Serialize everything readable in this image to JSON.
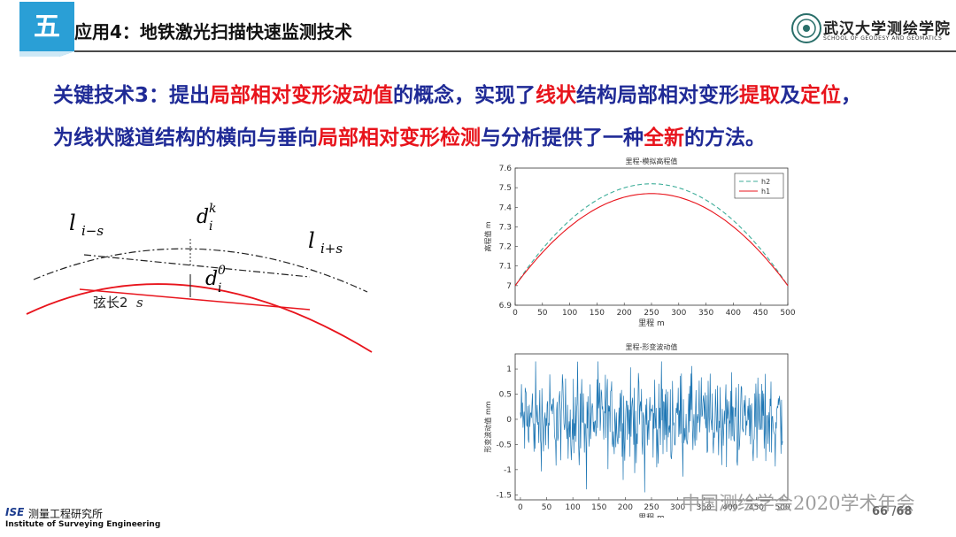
{
  "header": {
    "section_badge": "五",
    "title": "应用4：地铁激光扫描快速监测技术",
    "logo_name": "武汉大学测绘学院",
    "logo_sub": "SCHOOL OF GEODESY AND GEOMATICS"
  },
  "key_text": {
    "line1": [
      {
        "t": "关键技术3：提出",
        "red": false
      },
      {
        "t": "局部相对变形波动值",
        "red": true
      },
      {
        "t": "的概念，实现了",
        "red": false
      },
      {
        "t": "线状",
        "red": true
      },
      {
        "t": "结构局部相对变形",
        "red": false
      },
      {
        "t": "提取",
        "red": true
      },
      {
        "t": "及",
        "red": false
      },
      {
        "t": "定位",
        "red": true
      },
      {
        "t": "，",
        "red": false
      }
    ],
    "line2": [
      {
        "t": "为线状隧道结构的横向与垂向",
        "red": false
      },
      {
        "t": "局部相对变形检测",
        "red": true
      },
      {
        "t": "与分析提供了一种",
        "red": false
      },
      {
        "t": "全新",
        "red": true
      },
      {
        "t": "的方法。",
        "red": false
      }
    ]
  },
  "diagram": {
    "label_left": "l",
    "label_left_sub": "i−s",
    "label_right": "l",
    "label_right_sub": "i+s",
    "label_dk": "d",
    "label_dk_sub": "i",
    "label_dk_sup": "k",
    "label_d0": "d",
    "label_d0_sub": "i",
    "label_d0_sup": "0",
    "chord_label": "弦长2",
    "chord_label_s": "s"
  },
  "chart_data": [
    {
      "type": "line",
      "title": "里程-模拟高程值",
      "xlabel": "里程 m",
      "ylabel": "高程值 m",
      "xlim": [
        0,
        500
      ],
      "ylim": [
        6.9,
        7.6
      ],
      "xticks": [
        0,
        50,
        100,
        150,
        200,
        250,
        300,
        350,
        400,
        450,
        500
      ],
      "yticks": [
        6.9,
        7,
        7.1,
        7.2,
        7.3,
        7.4,
        7.5,
        7.6
      ],
      "legend_position": "top-right",
      "series": [
        {
          "name": "h2",
          "color": "#3fae9a",
          "style": "dashed",
          "vertex": [
            250,
            7.52
          ],
          "ends": [
            7.0,
            7.0
          ]
        },
        {
          "name": "h1",
          "color": "#e8141c",
          "style": "solid",
          "vertex": [
            250,
            7.47
          ],
          "ends": [
            7.0,
            7.0
          ]
        }
      ]
    },
    {
      "type": "line",
      "title": "里程-形变波动值",
      "xlabel": "里程 m",
      "ylabel": "形变波动值 mm",
      "xlim": [
        -10,
        510
      ],
      "ylim": [
        -1.6,
        1.3
      ],
      "xticks": [
        0,
        50,
        100,
        150,
        200,
        250,
        300,
        350,
        400,
        450,
        500
      ],
      "yticks": [
        -1.5,
        -1,
        -0.5,
        0,
        0.5,
        1
      ],
      "series": [
        {
          "name": "",
          "color": "#1f77b4",
          "style": "solid",
          "x_range": [
            0,
            500
          ],
          "amplitude_min": -1.45,
          "amplitude_max": 1.15
        }
      ]
    }
  ],
  "footer": {
    "ise": "ISE",
    "ise_cn": "测量工程研究所",
    "ise_en": "Institute of Surveying Engineering",
    "watermark": "中国测绘学会2020学术年会",
    "page": "66",
    "total": "/68",
    "page_sep": " "
  },
  "colors": {
    "accent": "#2a9fd6",
    "text_blue": "#1f2a96",
    "highlight_red": "#e8141c"
  }
}
